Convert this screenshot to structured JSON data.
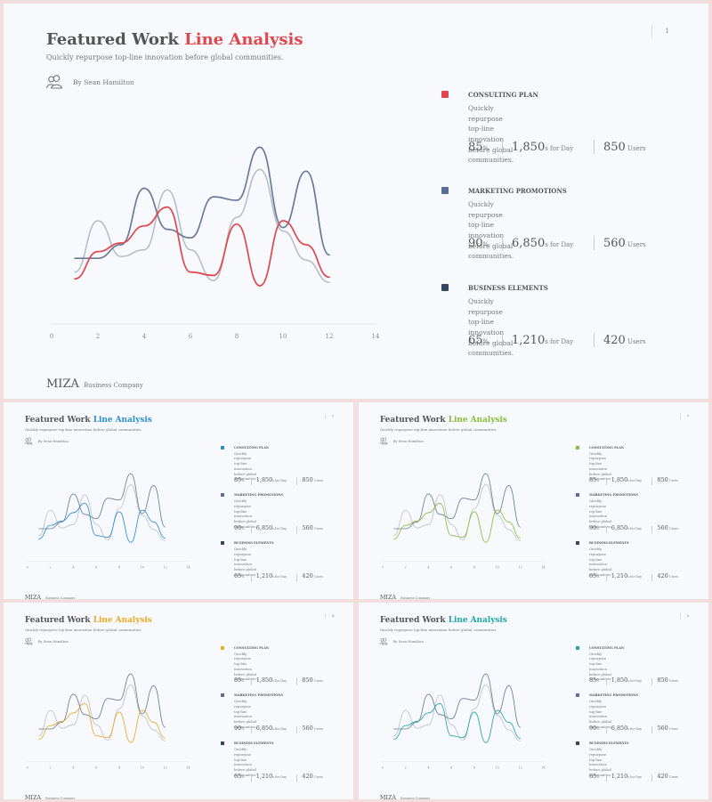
{
  "slides": [
    {
      "accent": "#e0474c",
      "page": "1"
    },
    {
      "accent": "#2a8fd0",
      "page": "2"
    },
    {
      "accent": "#86be3a",
      "page": "3"
    },
    {
      "accent": "#eaa92a",
      "page": "4"
    },
    {
      "accent": "#1fa7a6",
      "page": "5"
    }
  ],
  "content": {
    "title_prefix": "Featured Work",
    "title_accent": "Line Analysis",
    "subtitle": "Quickly repurpose top-line innovation before global communities.",
    "author": "By Sean Hamilton",
    "brand": "MIZA",
    "brand_sub": "Business Company",
    "icon": "users-icon"
  },
  "chart_data": {
    "type": "line",
    "x_ticks": [
      "0",
      "2",
      "4",
      "6",
      "8",
      "10",
      "12",
      "14"
    ],
    "xlim": [
      0,
      14
    ],
    "ylim": [
      0,
      100
    ],
    "series": [
      {
        "x": [
          1,
          2,
          3,
          4,
          5,
          6,
          7,
          8,
          9,
          10,
          11,
          12
        ],
        "y": [
          16,
          32,
          37,
          47,
          58,
          20,
          18,
          48,
          12,
          50,
          36,
          17
        ],
        "color": "accent",
        "width": 1.7
      },
      {
        "x": [
          1,
          2,
          3,
          4,
          5,
          6,
          7,
          8,
          9,
          10,
          11,
          12
        ],
        "y": [
          28,
          28,
          36,
          69,
          45,
          40,
          64,
          62,
          93,
          46,
          79,
          30
        ],
        "color": "#6b7c98",
        "width": 1.7
      },
      {
        "x": [
          1,
          2,
          3,
          4,
          5,
          6,
          7,
          8,
          9,
          10,
          11,
          12
        ],
        "y": [
          20,
          50,
          29,
          33,
          68,
          33,
          15,
          52,
          80,
          44,
          27,
          14
        ],
        "color": "#b6bac2",
        "width": 1.5
      }
    ]
  },
  "items": [
    {
      "name": "CONSULTING PLAN",
      "desc_line1": "Quickly repurpose top-line innovation before global",
      "desc_line2": "communities.",
      "color": "accent",
      "stats": [
        {
          "num": "85",
          "unit": "%"
        },
        {
          "num": "1,850",
          "unit": "s for Day"
        },
        {
          "num": "850",
          "unit": " Users"
        }
      ]
    },
    {
      "name": "MARKETING PROMOTIONS",
      "desc_line1": "Quickly repurpose top-line innovation before global",
      "desc_line2": "communities.",
      "color": "#5a6f93",
      "stats": [
        {
          "num": "90",
          "unit": "%"
        },
        {
          "num": "6,850",
          "unit": "s for Day"
        },
        {
          "num": "560",
          "unit": " Users"
        }
      ]
    },
    {
      "name": "BUSINESS ELEMENTS",
      "desc_line1": "Quickly repurpose top-line innovation before global",
      "desc_line2": "communities.",
      "color": "#34465c",
      "stats": [
        {
          "num": "65",
          "unit": "%"
        },
        {
          "num": "1,210",
          "unit": "s for Day"
        },
        {
          "num": "420",
          "unit": " Users"
        }
      ]
    }
  ]
}
